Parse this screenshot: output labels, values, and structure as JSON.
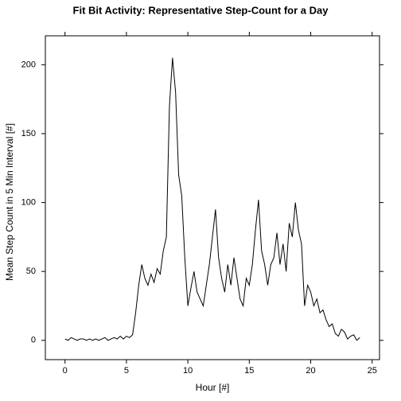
{
  "chart_data": {
    "type": "line",
    "title": "Fit Bit Activity:  Representative Step-Count for a Day",
    "x_label": "Hour [#]",
    "y_label": "Mean Step Count in 5 Min Interval [#]",
    "x": [
      0,
      0.25,
      0.5,
      0.75,
      1,
      1.25,
      1.5,
      1.75,
      2,
      2.25,
      2.5,
      2.75,
      3,
      3.25,
      3.5,
      3.75,
      4,
      4.25,
      4.5,
      4.75,
      5,
      5.25,
      5.5,
      5.75,
      6,
      6.25,
      6.5,
      6.75,
      7,
      7.25,
      7.5,
      7.75,
      8,
      8.25,
      8.5,
      8.75,
      9,
      9.25,
      9.5,
      9.75,
      10,
      10.25,
      10.5,
      10.75,
      11,
      11.25,
      11.5,
      11.75,
      12,
      12.25,
      12.5,
      12.75,
      13,
      13.25,
      13.5,
      13.75,
      14,
      14.25,
      14.5,
      14.75,
      15,
      15.25,
      15.5,
      15.75,
      16,
      16.25,
      16.5,
      16.75,
      17,
      17.25,
      17.5,
      17.75,
      18,
      18.25,
      18.5,
      18.75,
      19,
      19.25,
      19.5,
      19.75,
      20,
      20.25,
      20.5,
      20.75,
      21,
      21.25,
      21.5,
      21.75,
      22,
      22.25,
      22.5,
      22.75,
      23,
      23.25,
      23.5,
      23.75,
      24
    ],
    "series": [
      {
        "name": "steps",
        "color": "#000000",
        "values": [
          1,
          0,
          2,
          1,
          0,
          1,
          1,
          0,
          1,
          0,
          1,
          0,
          1,
          2,
          0,
          1,
          2,
          1,
          3,
          1,
          3,
          2,
          4,
          20,
          40,
          55,
          45,
          40,
          48,
          42,
          52,
          48,
          65,
          75,
          170,
          205,
          180,
          120,
          105,
          60,
          25,
          38,
          50,
          35,
          30,
          25,
          40,
          55,
          75,
          95,
          60,
          45,
          35,
          55,
          40,
          60,
          45,
          30,
          25,
          45,
          40,
          55,
          80,
          102,
          65,
          55,
          40,
          55,
          60,
          78,
          55,
          70,
          50,
          85,
          75,
          100,
          80,
          70,
          25,
          40,
          35,
          25,
          30,
          20,
          22,
          15,
          10,
          12,
          5,
          3,
          8,
          6,
          1,
          3,
          4,
          0,
          2
        ]
      }
    ],
    "xlim": [
      -1.6,
      25.6
    ],
    "ylim": [
      -14,
      221
    ],
    "xticks": [
      0,
      5,
      10,
      15,
      20,
      25
    ],
    "yticks": [
      0,
      50,
      100,
      150,
      200
    ]
  }
}
